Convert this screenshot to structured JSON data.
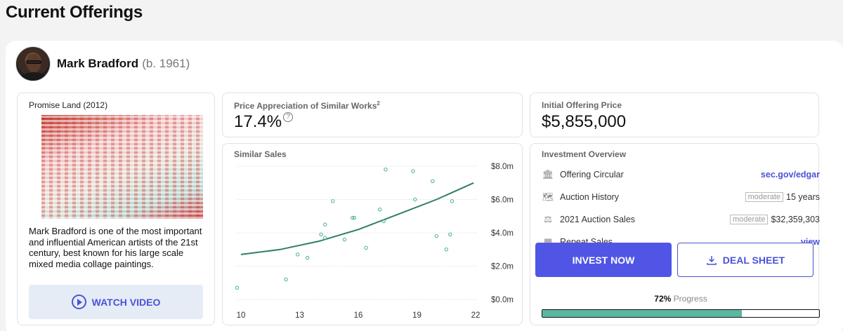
{
  "page": {
    "title": "Current Offerings"
  },
  "artist": {
    "name": "Mark Bradford",
    "born": "(b. 1961)"
  },
  "artwork": {
    "title": "Promise Land (2012)",
    "description": "Mark Bradford is one of the most important and influential American artists of the 21st century, best known for his large scale mixed media collage paintings.",
    "watch_label": "WATCH VIDEO"
  },
  "appreciation": {
    "label": "Price Appreciation of Similar Works",
    "sup": "2",
    "value": "17.4%",
    "info_icon": "?"
  },
  "offering": {
    "label": "Initial Offering Price",
    "value": "$5,855,000"
  },
  "sales": {
    "label": "Similar Sales"
  },
  "chart_data": {
    "type": "scatter",
    "title": "Similar Sales",
    "x_ticks": [
      "10",
      "13",
      "16",
      "19",
      "22"
    ],
    "y_ticks": [
      "$0.0m",
      "$2.0m",
      "$4.0m",
      "$6.0m",
      "$8.0m"
    ],
    "xlim": [
      10,
      22
    ],
    "ylim": [
      0,
      8
    ],
    "points": [
      [
        9.8,
        0.7
      ],
      [
        12.3,
        1.2
      ],
      [
        12.9,
        2.7
      ],
      [
        13.4,
        2.5
      ],
      [
        14.1,
        3.9
      ],
      [
        14.3,
        3.7
      ],
      [
        14.3,
        4.5
      ],
      [
        14.7,
        5.9
      ],
      [
        15.3,
        3.6
      ],
      [
        15.7,
        4.9
      ],
      [
        15.8,
        4.9
      ],
      [
        16.4,
        3.1
      ],
      [
        17.1,
        5.4
      ],
      [
        17.3,
        4.7
      ],
      [
        17.4,
        7.8
      ],
      [
        18.8,
        7.7
      ],
      [
        18.9,
        6.0
      ],
      [
        19.8,
        7.1
      ],
      [
        20.0,
        3.8
      ],
      [
        20.5,
        3.0
      ],
      [
        20.7,
        3.9
      ],
      [
        20.8,
        5.9
      ]
    ],
    "trend": [
      [
        10,
        2.7
      ],
      [
        12,
        3.0
      ],
      [
        14,
        3.5
      ],
      [
        16,
        4.2
      ],
      [
        18,
        5.1
      ],
      [
        20,
        6.0
      ],
      [
        21.9,
        7.0
      ]
    ],
    "grid": true
  },
  "overview": {
    "label": "Investment Overview",
    "rows": [
      {
        "label": "Offering Circular",
        "value": "sec.gov/edgar"
      },
      {
        "label": "Auction History",
        "tag": "moderate",
        "value": "15 years"
      },
      {
        "label": "2021 Auction Sales",
        "tag": "moderate",
        "value": "$32,359,303"
      },
      {
        "label": "Repeat Sales",
        "value": "view"
      }
    ],
    "progress_value": "72%",
    "progress_text": "Progress",
    "progress_fraction": 0.72
  },
  "actions": {
    "invest_label": "INVEST NOW",
    "deal_label": "DEAL SHEET"
  },
  "colors": {
    "accent": "#5055e6",
    "teal": "#2f7d6b",
    "progress": "#5bb7a0"
  }
}
